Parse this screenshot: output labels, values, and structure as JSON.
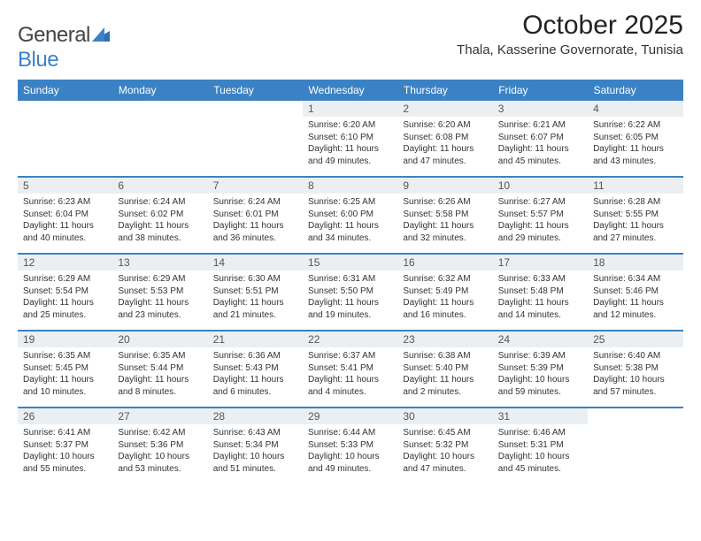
{
  "logo": {
    "word1": "General",
    "word2": "Blue"
  },
  "title": "October 2025",
  "location": "Thala, Kasserine Governorate, Tunisia",
  "header_bg": "#3b82c4",
  "header_text": "#ffffff",
  "daynum_bg": "#eceff2",
  "divider_color": "#3b82c4",
  "dayNames": [
    "Sunday",
    "Monday",
    "Tuesday",
    "Wednesday",
    "Thursday",
    "Friday",
    "Saturday"
  ],
  "weeks": [
    [
      null,
      null,
      null,
      {
        "n": "1",
        "sunrise": "6:20 AM",
        "sunset": "6:10 PM",
        "dh": "11",
        "dm": "49"
      },
      {
        "n": "2",
        "sunrise": "6:20 AM",
        "sunset": "6:08 PM",
        "dh": "11",
        "dm": "47"
      },
      {
        "n": "3",
        "sunrise": "6:21 AM",
        "sunset": "6:07 PM",
        "dh": "11",
        "dm": "45"
      },
      {
        "n": "4",
        "sunrise": "6:22 AM",
        "sunset": "6:05 PM",
        "dh": "11",
        "dm": "43"
      }
    ],
    [
      {
        "n": "5",
        "sunrise": "6:23 AM",
        "sunset": "6:04 PM",
        "dh": "11",
        "dm": "40"
      },
      {
        "n": "6",
        "sunrise": "6:24 AM",
        "sunset": "6:02 PM",
        "dh": "11",
        "dm": "38"
      },
      {
        "n": "7",
        "sunrise": "6:24 AM",
        "sunset": "6:01 PM",
        "dh": "11",
        "dm": "36"
      },
      {
        "n": "8",
        "sunrise": "6:25 AM",
        "sunset": "6:00 PM",
        "dh": "11",
        "dm": "34"
      },
      {
        "n": "9",
        "sunrise": "6:26 AM",
        "sunset": "5:58 PM",
        "dh": "11",
        "dm": "32"
      },
      {
        "n": "10",
        "sunrise": "6:27 AM",
        "sunset": "5:57 PM",
        "dh": "11",
        "dm": "29"
      },
      {
        "n": "11",
        "sunrise": "6:28 AM",
        "sunset": "5:55 PM",
        "dh": "11",
        "dm": "27"
      }
    ],
    [
      {
        "n": "12",
        "sunrise": "6:29 AM",
        "sunset": "5:54 PM",
        "dh": "11",
        "dm": "25"
      },
      {
        "n": "13",
        "sunrise": "6:29 AM",
        "sunset": "5:53 PM",
        "dh": "11",
        "dm": "23"
      },
      {
        "n": "14",
        "sunrise": "6:30 AM",
        "sunset": "5:51 PM",
        "dh": "11",
        "dm": "21"
      },
      {
        "n": "15",
        "sunrise": "6:31 AM",
        "sunset": "5:50 PM",
        "dh": "11",
        "dm": "19"
      },
      {
        "n": "16",
        "sunrise": "6:32 AM",
        "sunset": "5:49 PM",
        "dh": "11",
        "dm": "16"
      },
      {
        "n": "17",
        "sunrise": "6:33 AM",
        "sunset": "5:48 PM",
        "dh": "11",
        "dm": "14"
      },
      {
        "n": "18",
        "sunrise": "6:34 AM",
        "sunset": "5:46 PM",
        "dh": "11",
        "dm": "12"
      }
    ],
    [
      {
        "n": "19",
        "sunrise": "6:35 AM",
        "sunset": "5:45 PM",
        "dh": "11",
        "dm": "10"
      },
      {
        "n": "20",
        "sunrise": "6:35 AM",
        "sunset": "5:44 PM",
        "dh": "11",
        "dm": "8"
      },
      {
        "n": "21",
        "sunrise": "6:36 AM",
        "sunset": "5:43 PM",
        "dh": "11",
        "dm": "6"
      },
      {
        "n": "22",
        "sunrise": "6:37 AM",
        "sunset": "5:41 PM",
        "dh": "11",
        "dm": "4"
      },
      {
        "n": "23",
        "sunrise": "6:38 AM",
        "sunset": "5:40 PM",
        "dh": "11",
        "dm": "2"
      },
      {
        "n": "24",
        "sunrise": "6:39 AM",
        "sunset": "5:39 PM",
        "dh": "10",
        "dm": "59"
      },
      {
        "n": "25",
        "sunrise": "6:40 AM",
        "sunset": "5:38 PM",
        "dh": "10",
        "dm": "57"
      }
    ],
    [
      {
        "n": "26",
        "sunrise": "6:41 AM",
        "sunset": "5:37 PM",
        "dh": "10",
        "dm": "55"
      },
      {
        "n": "27",
        "sunrise": "6:42 AM",
        "sunset": "5:36 PM",
        "dh": "10",
        "dm": "53"
      },
      {
        "n": "28",
        "sunrise": "6:43 AM",
        "sunset": "5:34 PM",
        "dh": "10",
        "dm": "51"
      },
      {
        "n": "29",
        "sunrise": "6:44 AM",
        "sunset": "5:33 PM",
        "dh": "10",
        "dm": "49"
      },
      {
        "n": "30",
        "sunrise": "6:45 AM",
        "sunset": "5:32 PM",
        "dh": "10",
        "dm": "47"
      },
      {
        "n": "31",
        "sunrise": "6:46 AM",
        "sunset": "5:31 PM",
        "dh": "10",
        "dm": "45"
      },
      null
    ]
  ],
  "labels": {
    "sunrise": "Sunrise: ",
    "sunset": "Sunset: ",
    "daylight_a": "Daylight: ",
    "daylight_b": " hours and ",
    "daylight_c": " minutes."
  }
}
